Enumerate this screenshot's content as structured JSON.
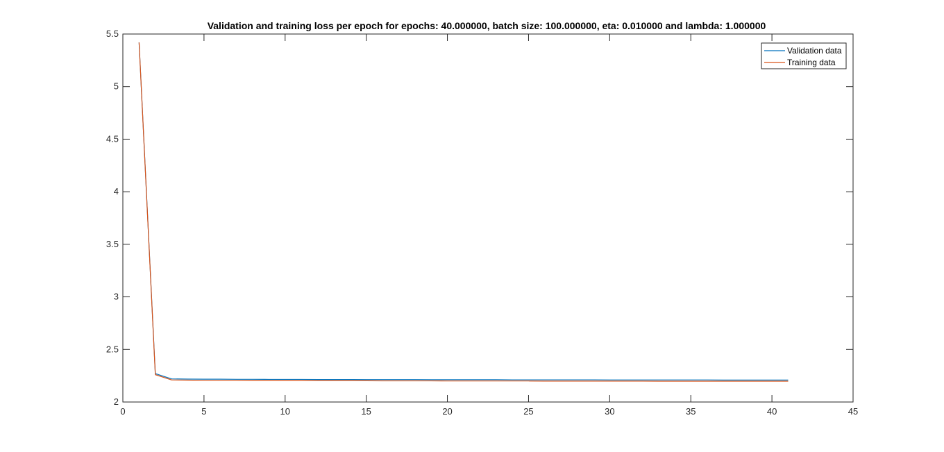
{
  "chart_data": {
    "type": "line",
    "title": "Validation and training loss per epoch for epochs: 40.000000, batch size: 100.000000, eta: 0.010000 and lambda: 1.000000",
    "xlabel": "",
    "ylabel": "",
    "xlim": [
      0,
      45
    ],
    "ylim": [
      2,
      5.5
    ],
    "xticks": [
      0,
      5,
      10,
      15,
      20,
      25,
      30,
      35,
      40,
      45
    ],
    "yticks": [
      2,
      2.5,
      3,
      3.5,
      4,
      4.5,
      5,
      5.5
    ],
    "xtick_labels": [
      "0",
      "5",
      "10",
      "15",
      "20",
      "25",
      "30",
      "35",
      "40",
      "45"
    ],
    "ytick_labels": [
      "2",
      "2.5",
      "3",
      "3.5",
      "4",
      "4.5",
      "5",
      "5.5"
    ],
    "grid": false,
    "legend_position": "top-right",
    "x": [
      1,
      2,
      3,
      4,
      5,
      6,
      7,
      8,
      9,
      10,
      11,
      12,
      13,
      14,
      15,
      16,
      17,
      18,
      19,
      20,
      21,
      22,
      23,
      24,
      25,
      26,
      27,
      28,
      29,
      30,
      31,
      32,
      33,
      34,
      35,
      36,
      37,
      38,
      39,
      40,
      41
    ],
    "series": [
      {
        "name": "Validation data",
        "color": "#0072bd",
        "values": [
          5.42,
          2.27,
          2.22,
          2.218,
          2.217,
          2.217,
          2.216,
          2.216,
          2.215,
          2.215,
          2.215,
          2.214,
          2.214,
          2.214,
          2.213,
          2.213,
          2.213,
          2.213,
          2.212,
          2.212,
          2.212,
          2.212,
          2.212,
          2.211,
          2.211,
          2.211,
          2.211,
          2.211,
          2.211,
          2.21,
          2.21,
          2.21,
          2.21,
          2.21,
          2.21,
          2.21,
          2.209,
          2.209,
          2.209,
          2.209,
          2.209
        ]
      },
      {
        "name": "Training data",
        "color": "#d95319",
        "values": [
          5.42,
          2.26,
          2.21,
          2.208,
          2.206,
          2.205,
          2.205,
          2.204,
          2.204,
          2.203,
          2.203,
          2.203,
          2.202,
          2.202,
          2.202,
          2.201,
          2.201,
          2.201,
          2.201,
          2.2,
          2.2,
          2.2,
          2.2,
          2.2,
          2.2,
          2.199,
          2.199,
          2.199,
          2.199,
          2.199,
          2.199,
          2.199,
          2.198,
          2.198,
          2.198,
          2.198,
          2.198,
          2.198,
          2.198,
          2.198,
          2.198
        ]
      }
    ]
  }
}
